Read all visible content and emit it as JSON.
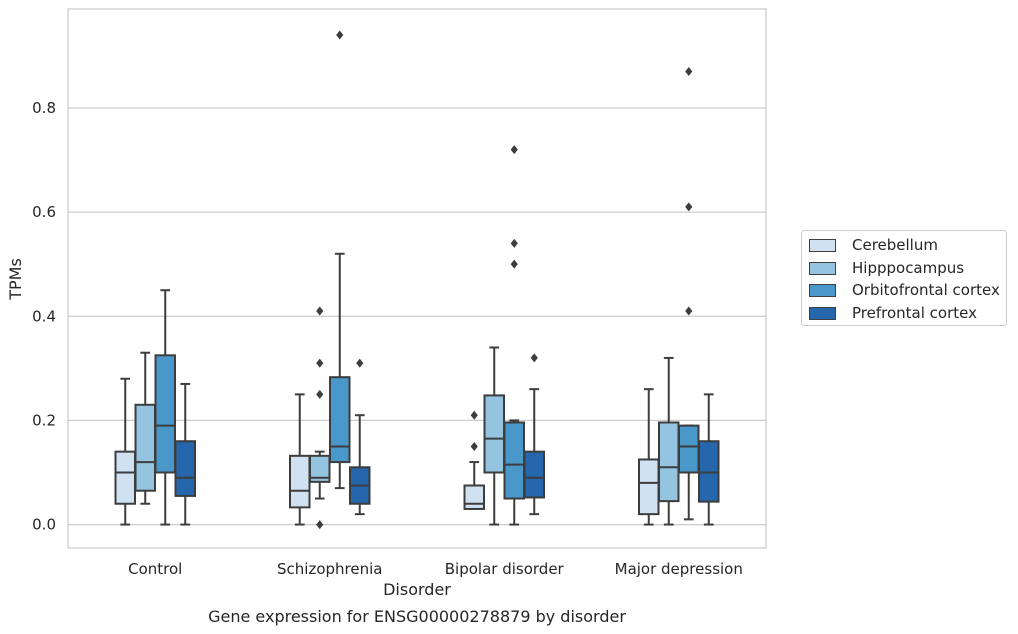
{
  "chart_data": {
    "type": "box",
    "title": "",
    "caption": "Gene expression for ENSG00000278879 by disorder",
    "xlabel": "Disorder",
    "ylabel": "TPMs",
    "ylim": [
      -0.045,
      0.99
    ],
    "yticks": [
      "0.0",
      "0.2",
      "0.4",
      "0.6",
      "0.8"
    ],
    "grid": true,
    "legend_position": "right",
    "categories": [
      "Control",
      "Schizophrenia",
      "Bipolar disorder",
      "Major depression"
    ],
    "series": [
      {
        "name": "Cerebellum",
        "color": "#d0e1f2",
        "boxes": [
          {
            "min": 0.0,
            "q1": 0.04,
            "median": 0.1,
            "q3": 0.14,
            "max": 0.28,
            "outliers": []
          },
          {
            "min": 0.0,
            "q1": 0.033,
            "median": 0.065,
            "q3": 0.132,
            "max": 0.25,
            "outliers": []
          },
          {
            "min": 0.03,
            "q1": 0.03,
            "median": 0.04,
            "q3": 0.075,
            "max": 0.12,
            "outliers": [
              0.15,
              0.21
            ]
          },
          {
            "min": 0.0,
            "q1": 0.02,
            "median": 0.08,
            "q3": 0.125,
            "max": 0.26,
            "outliers": []
          }
        ]
      },
      {
        "name": "Hipppocampus",
        "color": "#94c4df",
        "boxes": [
          {
            "min": 0.04,
            "q1": 0.065,
            "median": 0.12,
            "q3": 0.23,
            "max": 0.33,
            "outliers": []
          },
          {
            "min": 0.05,
            "q1": 0.082,
            "median": 0.09,
            "q3": 0.132,
            "max": 0.14,
            "outliers": [
              0.0,
              0.25,
              0.31,
              0.41
            ]
          },
          {
            "min": 0.0,
            "q1": 0.1,
            "median": 0.165,
            "q3": 0.248,
            "max": 0.34,
            "outliers": []
          },
          {
            "min": 0.0,
            "q1": 0.045,
            "median": 0.11,
            "q3": 0.196,
            "max": 0.32,
            "outliers": []
          }
        ]
      },
      {
        "name": "Orbitofrontal cortex",
        "color": "#4a98c9",
        "boxes": [
          {
            "min": 0.0,
            "q1": 0.1,
            "median": 0.19,
            "q3": 0.325,
            "max": 0.45,
            "outliers": []
          },
          {
            "min": 0.07,
            "q1": 0.12,
            "median": 0.15,
            "q3": 0.283,
            "max": 0.52,
            "outliers": [
              0.94
            ]
          },
          {
            "min": 0.0,
            "q1": 0.05,
            "median": 0.115,
            "q3": 0.196,
            "max": 0.2,
            "outliers": [
              0.5,
              0.54,
              0.72
            ]
          },
          {
            "min": 0.01,
            "q1": 0.1,
            "median": 0.15,
            "q3": 0.19,
            "max": 0.19,
            "outliers": [
              0.41,
              0.61,
              0.87
            ]
          }
        ]
      },
      {
        "name": "Prefrontal cortex",
        "color": "#2566ad",
        "boxes": [
          {
            "min": 0.0,
            "q1": 0.055,
            "median": 0.09,
            "q3": 0.16,
            "max": 0.27,
            "outliers": []
          },
          {
            "min": 0.02,
            "q1": 0.04,
            "median": 0.075,
            "q3": 0.11,
            "max": 0.21,
            "outliers": [
              0.31
            ]
          },
          {
            "min": 0.02,
            "q1": 0.052,
            "median": 0.09,
            "q3": 0.14,
            "max": 0.26,
            "outliers": [
              0.32
            ]
          },
          {
            "min": 0.0,
            "q1": 0.044,
            "median": 0.1,
            "q3": 0.16,
            "max": 0.25,
            "outliers": []
          }
        ]
      }
    ]
  }
}
